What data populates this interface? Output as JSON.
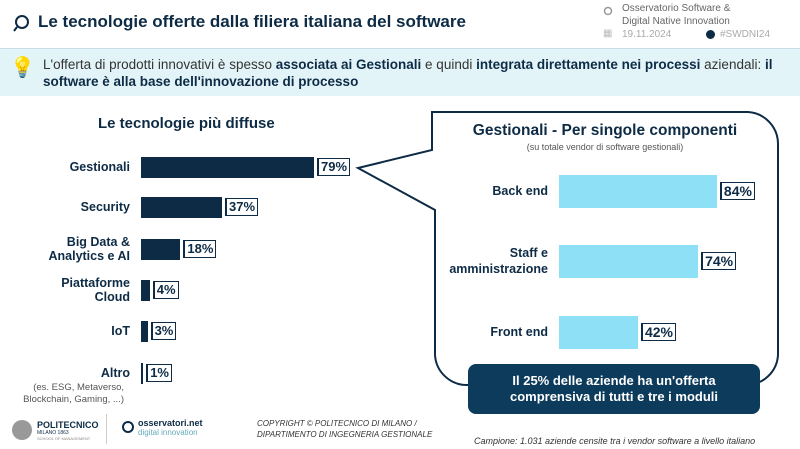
{
  "header": {
    "title": "Le tecnologie offerte dalla filiera italiana del software",
    "observatory_line1": "Osservatorio Software &",
    "observatory_line2": "Digital Native Innovation",
    "date": "19.11.2024",
    "hashtag": "#SWDNI24"
  },
  "banner": {
    "p1": "L'offerta di prodotti innovativi è spesso ",
    "b1": "associata ai Gestionali",
    "p2": " e quindi ",
    "b2": "integrata direttamente nei processi",
    "p3": " aziendali: ",
    "b3": "il software è alla base dell'innovazione di processo"
  },
  "chart_data": [
    {
      "type": "bar",
      "orientation": "horizontal",
      "title": "Le tecnologie più diffuse",
      "categories": [
        "Gestionali",
        "Security",
        "Big Data & Analytics e AI",
        "Piattaforme Cloud",
        "IoT",
        "Altro"
      ],
      "values": [
        79,
        37,
        18,
        4,
        3,
        1
      ],
      "labels": [
        "79%",
        "37%",
        "18%",
        "4%",
        "3%",
        "1%"
      ],
      "category_note": "(es. ESG, Metaverso, Blockchain, Gaming, ...)",
      "color": "#0d2b45"
    },
    {
      "type": "bar",
      "orientation": "horizontal",
      "title": "Gestionali - Per singole componenti",
      "subtitle": "(su totale vendor di software gestionali)",
      "categories": [
        "Back end",
        "Staff e amministrazione",
        "Front end"
      ],
      "values": [
        84,
        74,
        42
      ],
      "labels": [
        "84%",
        "74%",
        "42%"
      ],
      "color": "#8ee0f7"
    }
  ],
  "note": {
    "line1": "Il 25% delle aziende ha un'offerta",
    "line2": "comprensiva di tutti e tre i moduli"
  },
  "footer": {
    "polimi": "POLITECNICO",
    "polimi_sub": "MILANO 1863",
    "polimi_school": "SCHOOL OF MANAGEMENT",
    "obs_logo1": "osservatori.net",
    "obs_logo2": "digital innovation",
    "copyright1": "COPYRIGHT © POLITECNICO DI MILANO /",
    "copyright2": "DIPARTIMENTO DI INGEGNERIA GESTIONALE",
    "sample": "Campione: 1.031 aziende censite tra i vendor software a livello italiano"
  }
}
